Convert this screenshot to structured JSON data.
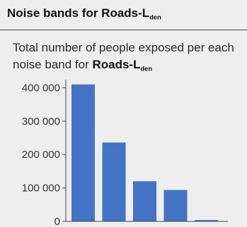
{
  "header": {
    "title_main": "Noise bands for Roads-L",
    "title_sub": "den"
  },
  "description": {
    "text": "Total number of people exposed per each noise band for ",
    "series_main": "Roads-L",
    "series_sub": "den"
  },
  "colors": {
    "bar": "#4472c4",
    "axis": "#444444",
    "background": "#eeeeee"
  },
  "chart_data": {
    "type": "bar",
    "categories": [
      "",
      "",
      "",
      "",
      ""
    ],
    "values": [
      410000,
      236000,
      120000,
      94000,
      4000
    ],
    "y_ticks": [
      0,
      100000,
      200000,
      300000,
      400000
    ],
    "y_tick_labels": [
      "0",
      "100 000",
      "200 000",
      "300 000",
      "400 000"
    ],
    "ylim": [
      0,
      420000
    ],
    "grid": false,
    "legend": "none"
  }
}
